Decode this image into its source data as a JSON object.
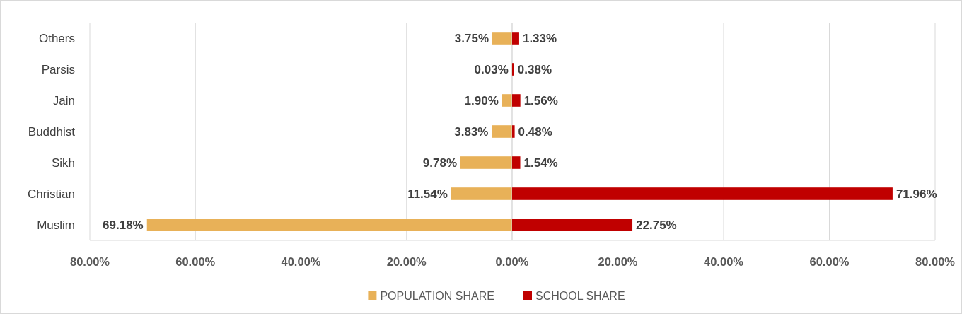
{
  "chart_data": [
    {
      "type": "bar",
      "orientation": "horizontal",
      "categories": [
        "Others",
        "Parsis",
        "Jain",
        "Buddhist",
        "Sikh",
        "Christian",
        "Muslim"
      ],
      "series": [
        {
          "name": "POPULATION SHARE",
          "color": "#e8b158",
          "values": [
            3.75,
            0.03,
            1.9,
            3.83,
            9.78,
            11.54,
            69.18
          ],
          "value_labels": [
            "3.75%",
            "0.03%",
            "1.90%",
            "3.83%",
            "9.78%",
            "11.54%",
            "69.18%"
          ]
        }
      ],
      "xlim": [
        80,
        0
      ],
      "xticks": [
        {
          "value": 80,
          "label": "80.00%"
        },
        {
          "value": 60,
          "label": "60.00%"
        },
        {
          "value": 40,
          "label": "40.00%"
        },
        {
          "value": 20,
          "label": "20.00%"
        },
        {
          "value": 0,
          "label": "0.00%"
        }
      ],
      "grid": "x",
      "legend": "bottom"
    },
    {
      "type": "bar",
      "orientation": "horizontal",
      "categories": [
        null,
        null,
        null,
        null,
        null,
        null,
        null
      ],
      "series": [
        {
          "name": "SCHOOL SHARE",
          "color": "#c00000",
          "values": [
            1.33,
            0.38,
            1.56,
            0.48,
            1.54,
            71.96,
            22.75
          ],
          "value_labels": [
            "1.33%",
            "0.38%",
            "1.56%",
            "0.48%",
            "1.54%",
            "71.96%",
            "22.75%"
          ]
        }
      ],
      "xlim": [
        0,
        80
      ],
      "xticks": [
        {
          "value": 0,
          "label": null
        },
        {
          "value": 20,
          "label": "20.00%"
        },
        {
          "value": 40,
          "label": "40.00%"
        },
        {
          "value": 60,
          "label": "60.00%"
        },
        {
          "value": 80,
          "label": "80.00%"
        }
      ],
      "grid": "x",
      "legend": "bottom",
      "tick_labels": "x"
    }
  ]
}
